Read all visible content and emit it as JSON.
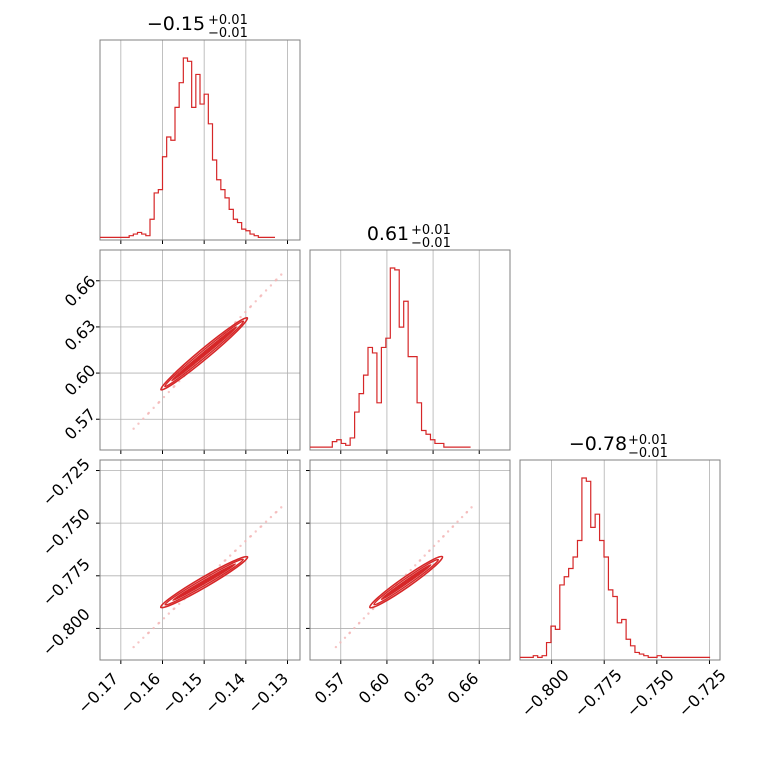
{
  "colors": {
    "series": "#d62728",
    "grid": "#b0b0b0",
    "spine": "#808080",
    "scatter": "#f4b6b7"
  },
  "chart_data": [
    {
      "type": "histogram",
      "panel": "hist-0",
      "title": {
        "value": "−0.15",
        "sup": "+0.01",
        "sub": "−0.01"
      },
      "xlim": [
        -0.175,
        -0.127
      ],
      "xticks": [
        -0.17,
        -0.16,
        -0.15,
        -0.14,
        -0.13
      ],
      "bin_edges_start": -0.175,
      "bin_width": 0.001,
      "counts": [
        1,
        1,
        1,
        1,
        1,
        1,
        1,
        2,
        3,
        4,
        3,
        2,
        12,
        28,
        30,
        50,
        62,
        60,
        80,
        95,
        110,
        108,
        80,
        100,
        82,
        88,
        70,
        48,
        36,
        30,
        25,
        18,
        12,
        10,
        6,
        5,
        3,
        2,
        1,
        1,
        1,
        1
      ]
    },
    {
      "type": "histogram",
      "panel": "hist-1",
      "title": {
        "value": "0.61",
        "sup": "+0.01",
        "sub": "−0.01"
      },
      "xlim": [
        0.55,
        0.68
      ],
      "xticks": [
        0.57,
        0.6,
        0.63,
        0.66
      ],
      "bin_edges_start": 0.55,
      "bin_width": 0.0029,
      "counts": [
        1,
        1,
        1,
        1,
        1,
        4,
        5,
        3,
        2,
        6,
        20,
        30,
        40,
        55,
        52,
        25,
        55,
        60,
        98,
        97,
        66,
        80,
        50,
        50,
        25,
        10,
        8,
        5,
        3,
        3,
        1,
        1,
        1,
        1,
        1,
        1
      ]
    },
    {
      "type": "histogram",
      "panel": "hist-2",
      "title": {
        "value": "−0.78",
        "sup": "+0.01",
        "sub": "−0.01"
      },
      "xlim": [
        -0.815,
        -0.72
      ],
      "xticks": [
        -0.8,
        -0.775,
        -0.75,
        -0.725
      ],
      "bin_edges_start": -0.815,
      "bin_width": 0.0021,
      "counts": [
        1,
        1,
        1,
        2,
        1,
        2,
        10,
        20,
        18,
        45,
        50,
        55,
        62,
        72,
        110,
        108,
        80,
        88,
        72,
        62,
        42,
        38,
        22,
        24,
        12,
        8,
        4,
        3,
        2,
        1,
        1,
        2,
        1,
        1,
        1,
        1,
        1,
        1,
        1,
        1,
        1,
        1,
        1
      ]
    },
    {
      "type": "scatter",
      "panel": "scatter-1-0",
      "xlim": [
        -0.175,
        -0.127
      ],
      "ylim": [
        0.55,
        0.68
      ],
      "xticks": [
        -0.17,
        -0.16,
        -0.15,
        -0.14,
        -0.13
      ],
      "yticks": [
        0.57,
        0.6,
        0.63,
        0.66
      ],
      "ytick_labels": [
        "0.57",
        "0.60",
        "0.63",
        "0.66"
      ],
      "trend": {
        "x0": -0.16,
        "y0": 0.59,
        "x1": -0.14,
        "y1": 0.635
      },
      "outlier_range": {
        "x0": -0.1665,
        "y0": 0.565,
        "x1": -0.1315,
        "y1": 0.664
      }
    },
    {
      "type": "scatter",
      "panel": "scatter-2-0",
      "xlim": [
        -0.175,
        -0.127
      ],
      "ylim": [
        -0.815,
        -0.72
      ],
      "xticks": [
        -0.17,
        -0.16,
        -0.15,
        -0.14,
        -0.13
      ],
      "xtick_labels": [
        "−0.17",
        "−0.16",
        "−0.15",
        "−0.14",
        "−0.13"
      ],
      "yticks": [
        -0.8,
        -0.775,
        -0.75,
        -0.725
      ],
      "ytick_labels": [
        "−0.800",
        "−0.775",
        "−0.750",
        "−0.725"
      ],
      "trend": {
        "x0": -0.16,
        "y0": -0.7895,
        "x1": -0.14,
        "y1": -0.7665
      },
      "outlier_range": {
        "x0": -0.1665,
        "y0": -0.808,
        "x1": -0.1315,
        "y1": -0.7425
      }
    },
    {
      "type": "scatter",
      "panel": "scatter-2-1",
      "xlim": [
        0.55,
        0.68
      ],
      "ylim": [
        -0.815,
        -0.72
      ],
      "xticks": [
        0.57,
        0.6,
        0.63,
        0.66
      ],
      "xtick_labels": [
        "0.57",
        "0.60",
        "0.63",
        "0.66"
      ],
      "yticks": [
        -0.8,
        -0.775,
        -0.75,
        -0.725
      ],
      "trend": {
        "x0": 0.59,
        "y0": -0.7895,
        "x1": 0.635,
        "y1": -0.7665
      },
      "outlier_range": {
        "x0": 0.568,
        "y0": -0.808,
        "x1": 0.655,
        "y1": -0.7425
      }
    }
  ],
  "bottom_tick_labels_2": [
    "−0.800",
    "−0.775",
    "−0.750",
    "−0.725"
  ]
}
